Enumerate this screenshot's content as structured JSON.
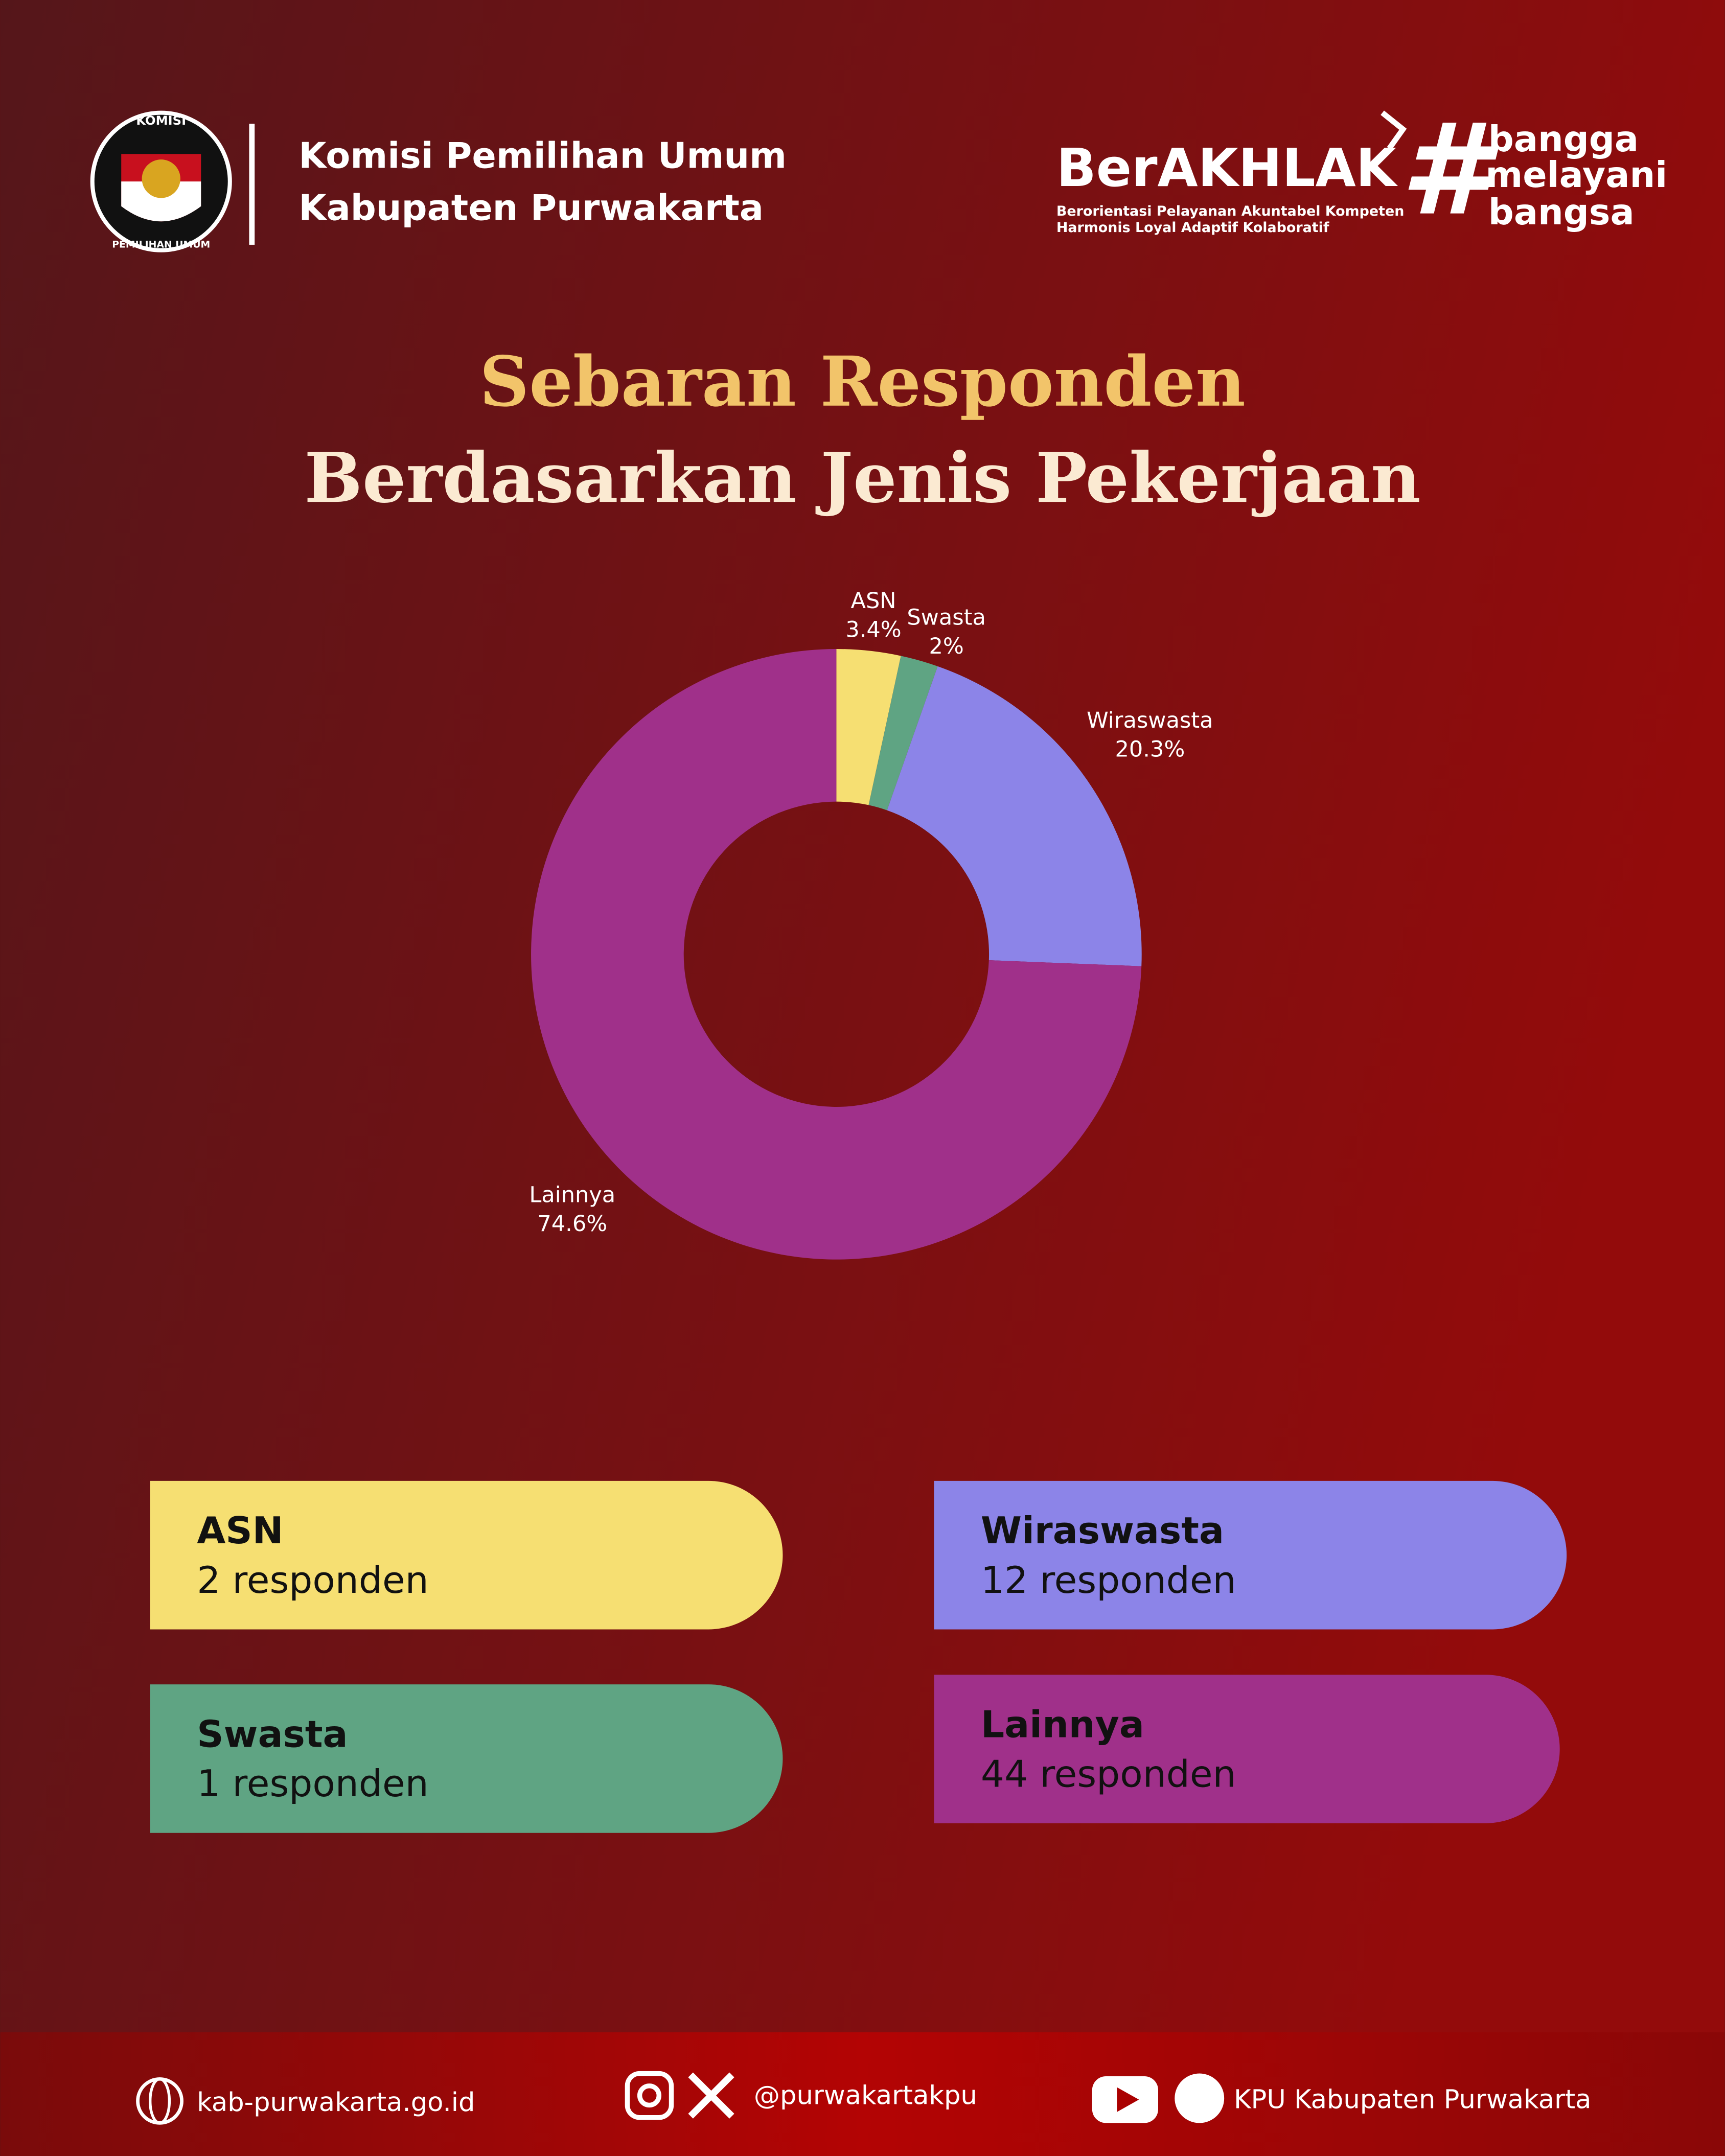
{
  "header": {
    "org_line1": "Komisi Pemilihan Umum",
    "org_line2": "Kabupaten Purwakarta",
    "logo_top": "KOMISI",
    "logo_bottom": "PEMILIHAN UMUM",
    "brand": "BerAKHLAK",
    "brand_line1": "Berorientasi Pelayanan Akuntabel Kompeten",
    "brand_line2": "Harmonis Loyal Adaptif Kolaboratif",
    "hashtag": "#",
    "tag_line1": "bangga",
    "tag_line2": "melayani",
    "tag_line3": "bangsa"
  },
  "chart_data": {
    "type": "pie",
    "donut": true,
    "title": "Sebaran Responden",
    "subtitle": "Berdasarkan Jenis Pekerjaan",
    "categories": [
      "ASN",
      "Swasta",
      "Wiraswasta",
      "Lainnya"
    ],
    "values": [
      3.4,
      2,
      20.3,
      74.6
    ],
    "value_labels": [
      "3.4%",
      "2%",
      "20.3%",
      "74.6%"
    ],
    "colors": [
      "#f6df72",
      "#5fa483",
      "#8c84e8",
      "#a0308a"
    ]
  },
  "cards": [
    {
      "name": "ASN",
      "text": "2 responden"
    },
    {
      "name": "Swasta",
      "text": "1 responden"
    },
    {
      "name": "Wiraswasta",
      "text": "12 responden"
    },
    {
      "name": "Lainnya",
      "text": "44 responden"
    }
  ],
  "footer": {
    "website": "kab-purwakarta.go.id",
    "handle": "@purwakartakpu",
    "channel": "KPU Kabupaten Purwakarta"
  }
}
